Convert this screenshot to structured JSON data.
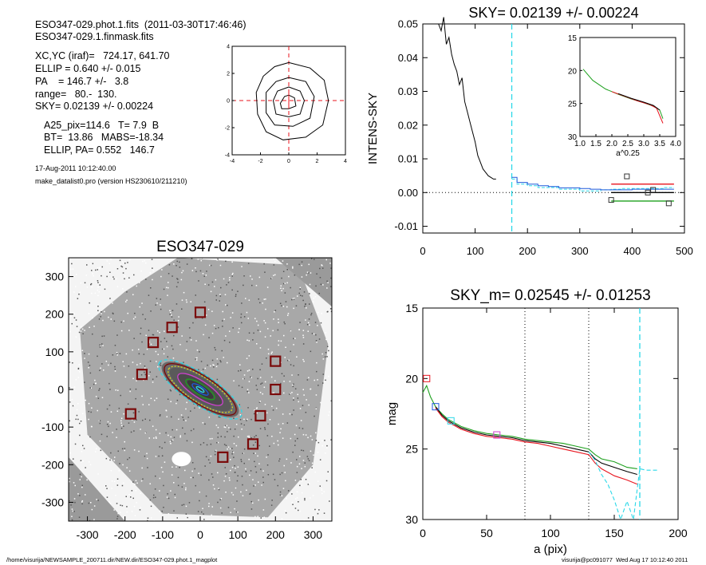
{
  "header": {
    "file_line": "ESO347-029.phot.1.fits  (2011-03-30T17:46:46)",
    "mask_line": "ESO347-029.1.finmask.fits",
    "params": [
      "XC,YC (iraf)=   724.17, 641.70",
      "ELLIP = 0.640 +/- 0.015",
      "PA    = 146.7 +/-   3.8",
      "range=   80.-  130.",
      "SKY= 0.02139 +/- 0.00224"
    ],
    "extra": [
      "A25_pix=114.6   T= 7.9  B",
      "BT=  13.86   MABS=-18.34",
      "ELLIP, PA= 0.552   146.7"
    ],
    "date_line": "17-Aug-2011 10:12:40.00",
    "program_line": "make_datalist0.pro (version HS230610/211210)"
  },
  "footer": {
    "path": "/home/visurija/NEWSAMPLE_200711.dir/NEW.dir/ESO347-029.phot.1_magplot",
    "user": "visurija@pc091077  Wed Aug 17 10:12:40 2011"
  },
  "colors": {
    "black": "#000000",
    "red": "#e8141e",
    "green": "#1ea01e",
    "blue": "#1e5adc",
    "cyan": "#2ad8e8",
    "magenta": "#d040d0",
    "dark_red": "#7a0a0a",
    "yellow": "#d8d820",
    "grey": "#888888"
  },
  "chart_data": [
    {
      "id": "centroid",
      "type": "contour",
      "title": "",
      "xlim": [
        -4,
        4
      ],
      "ylim": [
        -4,
        4
      ],
      "xticks": [
        "-4",
        "-2",
        "0",
        "2",
        "4"
      ],
      "yticks": [
        "-4",
        "-2",
        "0",
        "2",
        "4"
      ],
      "contours": [
        [
          [
            0,
            0.4
          ],
          [
            0.4,
            0.2
          ],
          [
            0.5,
            -0.4
          ],
          [
            0,
            -0.6
          ],
          [
            -0.5,
            -0.6
          ],
          [
            -0.6,
            -0.2
          ],
          [
            -0.3,
            0.3
          ],
          [
            0,
            0.4
          ]
        ],
        [
          [
            0,
            1.0
          ],
          [
            0.8,
            0.7
          ],
          [
            1.1,
            0
          ],
          [
            0.8,
            -1.0
          ],
          [
            0,
            -1.2
          ],
          [
            -0.9,
            -1.0
          ],
          [
            -1.1,
            0
          ],
          [
            -0.8,
            0.7
          ],
          [
            0,
            1.0
          ]
        ],
        [
          [
            0,
            1.7
          ],
          [
            1.2,
            1.4
          ],
          [
            1.8,
            0.3
          ],
          [
            1.5,
            -1.3
          ],
          [
            0.3,
            -1.9
          ],
          [
            -1.0,
            -1.8
          ],
          [
            -1.6,
            -0.9
          ],
          [
            -1.6,
            0.6
          ],
          [
            -0.9,
            1.4
          ],
          [
            0,
            1.7
          ]
        ],
        [
          [
            0,
            2.8
          ],
          [
            1.5,
            2.4
          ],
          [
            2.5,
            1.5
          ],
          [
            2.8,
            0
          ],
          [
            2.4,
            -1.8
          ],
          [
            1.2,
            -2.7
          ],
          [
            -0.4,
            -2.9
          ],
          [
            -1.6,
            -2.3
          ],
          [
            -2.2,
            -1.0
          ],
          [
            -2.3,
            0.6
          ],
          [
            -1.8,
            1.8
          ],
          [
            -1.0,
            2.5
          ],
          [
            0,
            2.8
          ]
        ]
      ],
      "center": [
        0,
        0
      ]
    },
    {
      "id": "sky-profile",
      "type": "line",
      "title": "SKY= 0.02139 +/- 0.00224",
      "xlabel": "",
      "ylabel": "INTENS-SKY",
      "xlim": [
        0,
        500
      ],
      "ylim": [
        -0.012,
        0.05
      ],
      "xticks": [
        "0",
        "100",
        "200",
        "300",
        "400",
        "500"
      ],
      "yticks": [
        "-0.01",
        "0.00",
        "0.01",
        "0.02",
        "0.03",
        "0.04",
        "0.05"
      ],
      "vline_x": 170,
      "series": [
        {
          "color": "black",
          "x": [
            30,
            35,
            40,
            45,
            50,
            55,
            60,
            65,
            70,
            75,
            80,
            85,
            90,
            95,
            100,
            105,
            110,
            115,
            120,
            125,
            130,
            135,
            140
          ],
          "y": [
            0.05,
            0.048,
            0.052,
            0.044,
            0.046,
            0.041,
            0.038,
            0.036,
            0.032,
            0.034,
            0.027,
            0.024,
            0.021,
            0.018,
            0.015,
            0.011,
            0.009,
            0.007,
            0.006,
            0.005,
            0.0045,
            0.004,
            0.004
          ]
        },
        {
          "color": "cyan",
          "x": [
            170,
            180,
            200,
            220,
            240,
            260,
            280,
            300,
            320,
            340,
            360,
            380,
            400,
            420,
            440,
            460,
            480
          ],
          "y": [
            0.004,
            0.0025,
            0.002,
            0.0015,
            0.0015,
            0.001,
            0.001,
            0.0005,
            0.0005,
            0.0008,
            0.001,
            0.0012,
            0.0012,
            0.0012,
            0.0012,
            0.0015,
            0.0015
          ]
        },
        {
          "color": "blue",
          "x": [
            170,
            180,
            200,
            220,
            240,
            260,
            280,
            300,
            320,
            340,
            360,
            380,
            400,
            420,
            440,
            460,
            480
          ],
          "y": [
            0.0045,
            0.003,
            0.0025,
            0.002,
            0.0018,
            0.0014,
            0.0014,
            0.0012,
            0.001,
            0.0008,
            0.0008,
            0.0008,
            0.001,
            0.001,
            0.001,
            0.001,
            0.001
          ]
        },
        {
          "color": "red",
          "x": [
            360,
            480
          ],
          "y": [
            0.0025,
            0.0025
          ]
        },
        {
          "color": "black",
          "x": [
            360,
            480
          ],
          "y": [
            0.0,
            0.0
          ]
        },
        {
          "color": "green",
          "x": [
            360,
            480
          ],
          "y": [
            -0.0025,
            -0.0025
          ]
        }
      ],
      "markers": [
        [
          360,
          -0.0022
        ],
        [
          390,
          0.0048
        ],
        [
          430,
          0.0
        ],
        [
          440,
          0.0008
        ],
        [
          470,
          -0.0032
        ]
      ],
      "inset": {
        "xlim": [
          1.0,
          4.0
        ],
        "ylim": [
          15,
          30
        ],
        "xlabel": "a^0.25",
        "xticks": [
          "1.0",
          "1.5",
          "2.0",
          "2.5",
          "3.0",
          "3.5",
          "4.0"
        ],
        "yticks": [
          "15",
          "20",
          "25",
          "30"
        ],
        "series": [
          {
            "color": "green",
            "x": [
              1.1,
              1.4,
              1.8,
              2.2,
              2.6,
              3.0,
              3.3,
              3.5,
              3.6
            ],
            "y": [
              19.8,
              21.5,
              22.8,
              23.6,
              24.3,
              24.9,
              25.4,
              26.0,
              27.3
            ]
          },
          {
            "color": "red",
            "x": [
              2.0,
              2.4,
              2.8,
              3.2,
              3.4,
              3.6
            ],
            "y": [
              23.2,
              23.9,
              24.6,
              25.2,
              25.7,
              28.0
            ]
          },
          {
            "color": "black",
            "x": [
              2.2,
              2.6,
              3.0,
              3.3,
              3.5
            ],
            "y": [
              23.5,
              24.2,
              24.8,
              25.3,
              26.0
            ]
          }
        ]
      }
    },
    {
      "id": "image",
      "type": "image",
      "title": "ESO347-029",
      "xlim": [
        -350,
        350
      ],
      "ylim": [
        -350,
        350
      ],
      "xticks": [
        "-300",
        "-200",
        "-100",
        "0",
        "100",
        "200",
        "300"
      ],
      "yticks": [
        "-300",
        "-200",
        "-100",
        "0",
        "100",
        "200",
        "300"
      ],
      "boxes": [
        [
          0,
          205
        ],
        [
          -75,
          165
        ],
        [
          -125,
          125
        ],
        [
          -155,
          40
        ],
        [
          -185,
          -65
        ],
        [
          200,
          75
        ],
        [
          200,
          0
        ],
        [
          160,
          -70
        ],
        [
          140,
          -145
        ],
        [
          60,
          -180
        ]
      ]
    },
    {
      "id": "mag-profile",
      "type": "line",
      "title": "SKY_m=  0.02545 +/- 0.01253",
      "xlabel": "a (pix)",
      "ylabel": "mag",
      "xlim": [
        0,
        200
      ],
      "ylim": [
        30,
        15
      ],
      "xticks": [
        "0",
        "50",
        "100",
        "150",
        "200"
      ],
      "yticks": [
        "15",
        "20",
        "25",
        "30"
      ],
      "vlines": [
        80,
        130
      ],
      "cyan_vline": 170,
      "series": [
        {
          "color": "green",
          "x": [
            0,
            3,
            6,
            10,
            15,
            20,
            30,
            40,
            50,
            60,
            70,
            80,
            90,
            100,
            110,
            120,
            130,
            135,
            140,
            150,
            160,
            168
          ],
          "y": [
            21.0,
            20.5,
            21.3,
            22.0,
            22.5,
            22.9,
            23.4,
            23.7,
            23.9,
            24.0,
            24.1,
            24.3,
            24.4,
            24.5,
            24.6,
            24.8,
            25.0,
            25.4,
            25.7,
            25.9,
            26.3,
            26.4
          ]
        },
        {
          "color": "black",
          "x": [
            10,
            15,
            20,
            30,
            40,
            50,
            60,
            70,
            80,
            90,
            100,
            110,
            120,
            130,
            135,
            140,
            150,
            160,
            168
          ],
          "y": [
            22.0,
            22.6,
            23.0,
            23.5,
            23.8,
            24.0,
            24.1,
            24.2,
            24.4,
            24.5,
            24.6,
            24.8,
            25.0,
            25.2,
            25.7,
            26.0,
            26.3,
            26.6,
            26.8
          ]
        },
        {
          "color": "red",
          "x": [
            10,
            15,
            20,
            30,
            40,
            50,
            60,
            70,
            80,
            90,
            100,
            110,
            120,
            130,
            135,
            140,
            150,
            160,
            168
          ],
          "y": [
            22.1,
            22.7,
            23.1,
            23.6,
            23.9,
            24.1,
            24.2,
            24.3,
            24.5,
            24.6,
            24.8,
            25.0,
            25.2,
            25.4,
            26.0,
            26.4,
            26.9,
            27.2,
            27.5
          ]
        },
        {
          "color": "cyan",
          "x": [
            130,
            135,
            140,
            145,
            150,
            155,
            160,
            165,
            170,
            175,
            185
          ],
          "y": [
            25.2,
            25.8,
            26.8,
            27.5,
            28.6,
            30.0,
            28.7,
            30.0,
            26.4,
            26.5,
            26.5
          ]
        }
      ],
      "markers": [
        {
          "color": "red",
          "x": 3,
          "y": 20.0
        },
        {
          "color": "blue",
          "x": 10,
          "y": 22.0
        },
        {
          "color": "cyan",
          "x": 22,
          "y": 23.0
        },
        {
          "color": "magenta",
          "x": 58,
          "y": 24.0
        }
      ]
    }
  ]
}
